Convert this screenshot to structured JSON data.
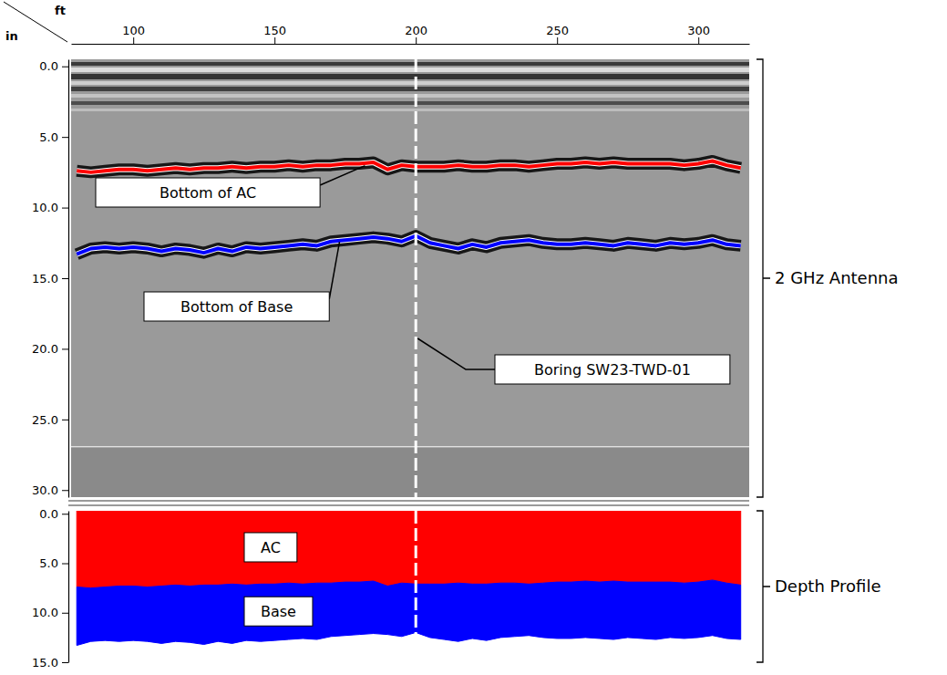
{
  "chart_data": [
    {
      "type": "line",
      "title": "2 GHz Antenna",
      "xlabel": "ft",
      "ylabel": "in",
      "x": [
        80,
        85,
        90,
        95,
        100,
        105,
        110,
        115,
        120,
        125,
        130,
        135,
        140,
        145,
        150,
        155,
        160,
        165,
        170,
        175,
        180,
        185,
        190,
        195,
        200,
        205,
        210,
        215,
        220,
        225,
        230,
        235,
        240,
        245,
        250,
        255,
        260,
        265,
        270,
        275,
        280,
        285,
        290,
        295,
        300,
        305,
        310,
        315
      ],
      "xlim": [
        78,
        318
      ],
      "xticks": [
        100,
        150,
        200,
        250,
        300
      ],
      "ylim": [
        -0.5,
        30.5
      ],
      "yticks": [
        {
          "value": 0,
          "label": "0.0"
        },
        {
          "value": 5,
          "label": "5.0"
        },
        {
          "value": 10,
          "label": "10.0"
        },
        {
          "value": 15,
          "label": "15.0"
        },
        {
          "value": 20,
          "label": "20.0"
        },
        {
          "value": 25,
          "label": "25.0"
        },
        {
          "value": 30,
          "label": "30.0"
        }
      ],
      "series": [
        {
          "name": "Bottom of AC",
          "color": "#ff0000",
          "annotation_x": 182,
          "values": [
            7.4,
            7.5,
            7.4,
            7.3,
            7.3,
            7.4,
            7.3,
            7.2,
            7.3,
            7.2,
            7.2,
            7.1,
            7.2,
            7.1,
            7.1,
            7.0,
            7.1,
            7.0,
            7.0,
            6.9,
            6.9,
            6.8,
            7.3,
            7.0,
            7.1,
            7.1,
            7.1,
            7.0,
            7.1,
            7.1,
            7.0,
            7.0,
            7.1,
            7.0,
            6.9,
            6.9,
            6.8,
            6.9,
            6.8,
            6.9,
            6.9,
            6.9,
            6.9,
            7.0,
            6.9,
            6.7,
            7.0,
            7.2
          ]
        },
        {
          "name": "Bottom of Base",
          "color": "#0000ff",
          "annotation_x": 173,
          "values": [
            13.3,
            12.9,
            12.8,
            12.9,
            12.8,
            12.9,
            13.1,
            12.9,
            13.0,
            13.2,
            12.9,
            13.1,
            12.8,
            12.9,
            12.8,
            12.7,
            12.6,
            12.7,
            12.4,
            12.3,
            12.2,
            12.1,
            12.2,
            12.4,
            12.0,
            12.5,
            12.7,
            12.9,
            12.6,
            12.8,
            12.5,
            12.4,
            12.3,
            12.5,
            12.6,
            12.6,
            12.5,
            12.6,
            12.7,
            12.5,
            12.6,
            12.7,
            12.5,
            12.6,
            12.5,
            12.3,
            12.6,
            12.7
          ]
        }
      ],
      "boring": {
        "label": "Boring SW23-TWD-01",
        "x": 200
      }
    },
    {
      "type": "area",
      "title": "Depth Profile",
      "x": [
        80,
        85,
        90,
        95,
        100,
        105,
        110,
        115,
        120,
        125,
        130,
        135,
        140,
        145,
        150,
        155,
        160,
        165,
        170,
        175,
        180,
        185,
        190,
        195,
        200,
        205,
        210,
        215,
        220,
        225,
        230,
        235,
        240,
        245,
        250,
        255,
        260,
        265,
        270,
        275,
        280,
        285,
        290,
        295,
        300,
        305,
        310,
        315
      ],
      "xlim": [
        78,
        318
      ],
      "ylim": [
        -0.3,
        15
      ],
      "yticks": [
        {
          "value": 0,
          "label": "0.0"
        },
        {
          "value": 5,
          "label": "5.0"
        },
        {
          "value": 10,
          "label": "10.0"
        },
        {
          "value": 15,
          "label": "15.0"
        }
      ],
      "tick_labels": "y",
      "series": [
        {
          "name": "AC",
          "color": "#ff0000",
          "values": [
            7.4,
            7.5,
            7.4,
            7.3,
            7.3,
            7.4,
            7.3,
            7.2,
            7.3,
            7.2,
            7.2,
            7.1,
            7.2,
            7.1,
            7.1,
            7.0,
            7.1,
            7.0,
            7.0,
            6.9,
            6.9,
            6.8,
            7.3,
            7.0,
            7.1,
            7.1,
            7.1,
            7.0,
            7.1,
            7.1,
            7.0,
            7.0,
            7.1,
            7.0,
            6.9,
            6.9,
            6.8,
            6.9,
            6.8,
            6.9,
            6.9,
            6.9,
            6.9,
            7.0,
            6.9,
            6.7,
            7.0,
            7.2
          ]
        },
        {
          "name": "Base",
          "color": "#0000ff",
          "values": [
            13.3,
            12.9,
            12.8,
            12.9,
            12.8,
            12.9,
            13.1,
            12.9,
            13.0,
            13.2,
            12.9,
            13.1,
            12.8,
            12.9,
            12.8,
            12.7,
            12.6,
            12.7,
            12.4,
            12.3,
            12.2,
            12.1,
            12.2,
            12.4,
            12.0,
            12.5,
            12.7,
            12.9,
            12.6,
            12.8,
            12.5,
            12.4,
            12.3,
            12.5,
            12.6,
            12.6,
            12.5,
            12.6,
            12.7,
            12.5,
            12.6,
            12.7,
            12.5,
            12.6,
            12.5,
            12.3,
            12.6,
            12.7
          ]
        }
      ]
    }
  ]
}
